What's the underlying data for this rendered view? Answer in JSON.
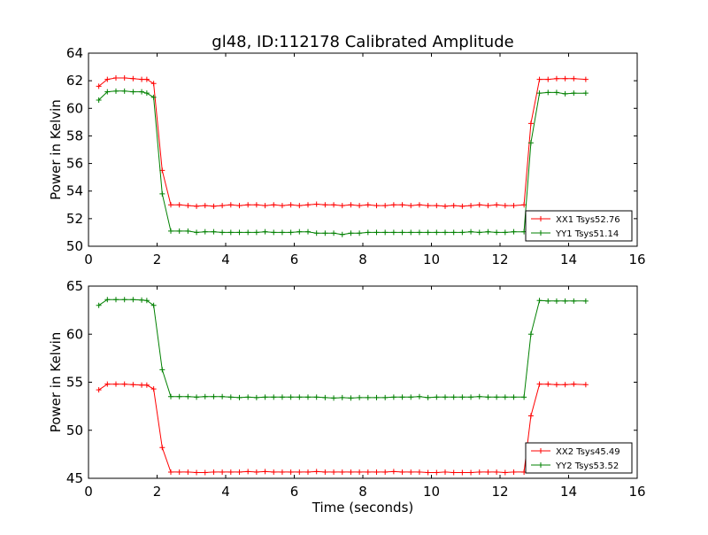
{
  "figure": {
    "title": "gl48, ID:112178 Calibrated Amplitude"
  },
  "chart_data": [
    {
      "type": "line",
      "title": "gl48, ID:112178 Calibrated Amplitude",
      "xlabel": "",
      "ylabel": "Power in Kelvin",
      "xlim": [
        0,
        16
      ],
      "ylim": [
        50,
        64
      ],
      "xticks": [
        0,
        2,
        4,
        6,
        8,
        10,
        12,
        14,
        16
      ],
      "yticks": [
        50,
        52,
        54,
        56,
        58,
        60,
        62,
        64
      ],
      "legend_position": "lower-right",
      "x": [
        0.3,
        0.55,
        0.8,
        1.05,
        1.3,
        1.55,
        1.7,
        1.9,
        2.15,
        2.4,
        2.65,
        2.9,
        3.15,
        3.4,
        3.65,
        3.9,
        4.15,
        4.4,
        4.65,
        4.9,
        5.15,
        5.4,
        5.65,
        5.9,
        6.15,
        6.4,
        6.65,
        6.9,
        7.15,
        7.4,
        7.65,
        7.9,
        8.15,
        8.4,
        8.65,
        8.9,
        9.15,
        9.4,
        9.65,
        9.9,
        10.15,
        10.4,
        10.65,
        10.9,
        11.15,
        11.4,
        11.65,
        11.9,
        12.15,
        12.4,
        12.7,
        12.9,
        13.15,
        13.4,
        13.65,
        13.9,
        14.15,
        14.5
      ],
      "series": [
        {
          "name": "XX1 Tsys52.76",
          "color": "#ff0000",
          "values": [
            61.6,
            62.1,
            62.2,
            62.2,
            62.15,
            62.1,
            62.1,
            61.8,
            55.5,
            53.0,
            53.0,
            52.95,
            52.9,
            52.95,
            52.9,
            52.95,
            53.0,
            52.95,
            53.0,
            53.0,
            52.95,
            53.0,
            52.95,
            53.0,
            52.95,
            53.0,
            53.05,
            53.0,
            53.0,
            52.95,
            53.0,
            52.95,
            53.0,
            52.95,
            52.95,
            53.0,
            53.0,
            52.95,
            53.0,
            52.95,
            52.95,
            52.9,
            52.95,
            52.9,
            52.95,
            53.0,
            52.95,
            53.0,
            52.95,
            52.95,
            53.0,
            58.9,
            62.1,
            62.1,
            62.15,
            62.15,
            62.15,
            62.1
          ]
        },
        {
          "name": "YY1 Tsys51.14",
          "color": "#008000",
          "values": [
            60.6,
            61.2,
            61.25,
            61.25,
            61.2,
            61.2,
            61.1,
            60.8,
            53.8,
            51.1,
            51.1,
            51.1,
            51.0,
            51.05,
            51.05,
            51.0,
            51.0,
            51.0,
            51.0,
            51.0,
            51.05,
            51.0,
            51.0,
            51.0,
            51.05,
            51.05,
            50.95,
            50.95,
            50.95,
            50.85,
            50.95,
            50.95,
            51.0,
            51.0,
            51.0,
            51.0,
            51.0,
            51.0,
            51.0,
            51.0,
            51.0,
            51.0,
            51.0,
            51.0,
            51.05,
            51.0,
            51.05,
            51.0,
            51.0,
            51.05,
            51.05,
            57.5,
            61.1,
            61.15,
            61.15,
            61.05,
            61.1,
            61.1
          ]
        }
      ]
    },
    {
      "type": "line",
      "title": "",
      "xlabel": "Time (seconds)",
      "ylabel": "Power in Kelvin",
      "xlim": [
        0,
        16
      ],
      "ylim": [
        45,
        65
      ],
      "xticks": [
        0,
        2,
        4,
        6,
        8,
        10,
        12,
        14,
        16
      ],
      "yticks": [
        45,
        50,
        55,
        60,
        65
      ],
      "legend_position": "lower-right",
      "x": [
        0.3,
        0.55,
        0.8,
        1.05,
        1.3,
        1.55,
        1.7,
        1.9,
        2.15,
        2.4,
        2.65,
        2.9,
        3.15,
        3.4,
        3.65,
        3.9,
        4.15,
        4.4,
        4.65,
        4.9,
        5.15,
        5.4,
        5.65,
        5.9,
        6.15,
        6.4,
        6.65,
        6.9,
        7.15,
        7.4,
        7.65,
        7.9,
        8.15,
        8.4,
        8.65,
        8.9,
        9.15,
        9.4,
        9.65,
        9.9,
        10.15,
        10.4,
        10.65,
        10.9,
        11.15,
        11.4,
        11.65,
        11.9,
        12.15,
        12.4,
        12.7,
        12.9,
        13.15,
        13.4,
        13.65,
        13.9,
        14.15,
        14.5
      ],
      "series": [
        {
          "name": "XX2 Tsys45.49",
          "color": "#ff0000",
          "values": [
            54.2,
            54.8,
            54.8,
            54.8,
            54.75,
            54.7,
            54.7,
            54.3,
            48.2,
            45.65,
            45.65,
            45.65,
            45.6,
            45.6,
            45.65,
            45.65,
            45.65,
            45.65,
            45.7,
            45.65,
            45.7,
            45.65,
            45.65,
            45.65,
            45.65,
            45.65,
            45.7,
            45.65,
            45.65,
            45.65,
            45.65,
            45.65,
            45.65,
            45.65,
            45.65,
            45.7,
            45.65,
            45.65,
            45.65,
            45.6,
            45.6,
            45.65,
            45.6,
            45.6,
            45.6,
            45.65,
            45.65,
            45.65,
            45.6,
            45.65,
            45.65,
            51.5,
            54.8,
            54.8,
            54.75,
            54.75,
            54.8,
            54.75
          ]
        },
        {
          "name": "YY2 Tsys53.52",
          "color": "#008000",
          "values": [
            63.0,
            63.6,
            63.6,
            63.6,
            63.6,
            63.55,
            63.5,
            63.0,
            56.3,
            53.5,
            53.5,
            53.5,
            53.45,
            53.5,
            53.5,
            53.5,
            53.45,
            53.4,
            53.45,
            53.4,
            53.45,
            53.45,
            53.45,
            53.45,
            53.45,
            53.45,
            53.45,
            53.4,
            53.35,
            53.4,
            53.35,
            53.4,
            53.4,
            53.4,
            53.4,
            53.45,
            53.45,
            53.45,
            53.5,
            53.4,
            53.45,
            53.45,
            53.45,
            53.45,
            53.45,
            53.5,
            53.45,
            53.45,
            53.45,
            53.45,
            53.45,
            60.0,
            63.5,
            63.45,
            63.45,
            63.45,
            63.45,
            63.45
          ]
        }
      ]
    }
  ]
}
